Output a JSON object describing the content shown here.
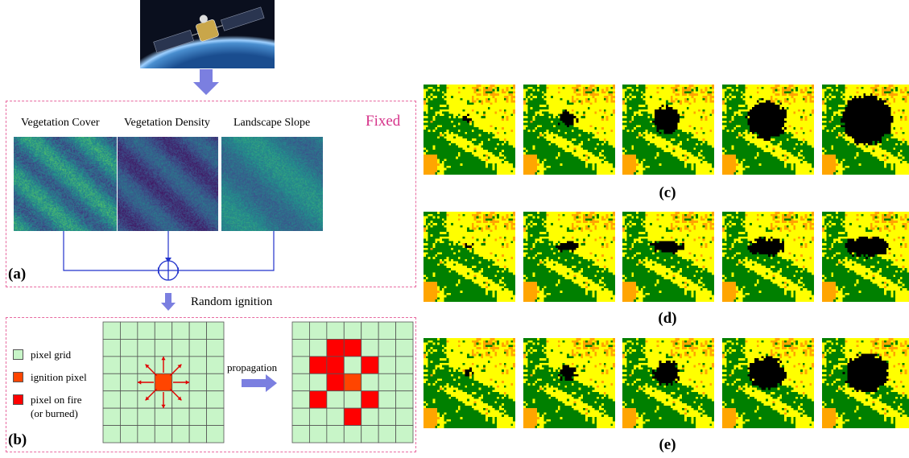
{
  "panel_a": {
    "tag": "(a)",
    "fixed_label": "Fixed",
    "layers": [
      {
        "label": "Vegetation Cover",
        "icon": "vegetation-cover-map"
      },
      {
        "label": "Vegetation Density",
        "icon": "vegetation-density-map"
      },
      {
        "label": "Landscape Slope",
        "icon": "landscape-slope-map"
      }
    ],
    "combine_icon": "circle-plus-icon"
  },
  "satellite_icon": "satellite-over-earth-image",
  "random_ignition_label": "Random ignition",
  "panel_b": {
    "tag": "(b)",
    "legend": [
      {
        "label": "pixel grid",
        "color": "#c8f5c8"
      },
      {
        "label": "ignition pixel",
        "color": "#ff4500"
      },
      {
        "label": "pixel on fire",
        "color": "#ff0000"
      },
      {
        "label": "(or burned)",
        "color": ""
      }
    ],
    "propagation_label": "propagation",
    "grid_color": "#c8f5c8",
    "ignition_color": "#ff4500",
    "fire_color": "#ff0000"
  },
  "simulations": [
    {
      "tag": "(c)",
      "frames": 5
    },
    {
      "tag": "(d)",
      "frames": 5
    },
    {
      "tag": "(e)",
      "frames": 5
    }
  ],
  "colors": {
    "dashed_border": "#e86aa0",
    "arrow_fill": "#7b7fe0",
    "connector": "#2233cc",
    "fixed_text": "#d6338a",
    "fuel_yellow": "#ffff00",
    "fuel_orange": "#ffa500",
    "fuel_green": "#008000",
    "burned": "#000000"
  }
}
